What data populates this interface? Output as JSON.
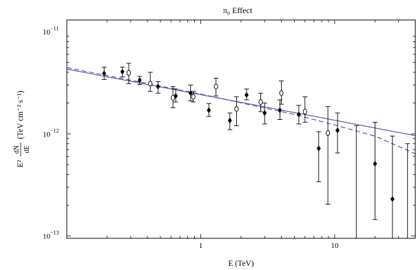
{
  "chart_data": {
    "type": "scatter",
    "title": "π₀ Effect",
    "xlabel": "E (TeV)",
    "ylabel_numerator": "dN",
    "ylabel_denominator": "dE",
    "ylabel_prefix": "E²",
    "ylabel_unit": "(TeV cm⁻² s⁻¹)",
    "x_scale": "log",
    "y_scale": "log",
    "xlim": [
      0.1,
      40
    ],
    "ylim": [
      9.5e-14,
      1.3e-11
    ],
    "x_ticks": [
      {
        "value": 1,
        "label": "1"
      },
      {
        "value": 10,
        "label": "10"
      }
    ],
    "y_ticks": [
      {
        "value": 1e-13,
        "base": "10",
        "exp": "−13"
      },
      {
        "value": 1e-12,
        "base": "10",
        "exp": "−12"
      },
      {
        "value": 1e-11,
        "base": "10",
        "exp": "−11"
      }
    ],
    "grid": false,
    "legend": "none",
    "series": [
      {
        "marker": "filled-diamond",
        "color": "#000000",
        "points": [
          {
            "x": 0.19,
            "y": 3.9e-12,
            "ylo": 3.4e-12,
            "yhi": 4.5e-12
          },
          {
            "x": 0.26,
            "y": 4.05e-12,
            "ylo": 3.6e-12,
            "yhi": 4.5e-12
          },
          {
            "x": 0.35,
            "y": 3.35e-12,
            "ylo": 3.05e-12,
            "yhi": 3.65e-12
          },
          {
            "x": 0.48,
            "y": 2.9e-12,
            "ylo": 2.5e-12,
            "yhi": 3.25e-12
          },
          {
            "x": 0.65,
            "y": 2.35e-12,
            "ylo": 2.05e-12,
            "yhi": 2.75e-12
          },
          {
            "x": 0.84,
            "y": 2.5e-12,
            "ylo": 2.1e-12,
            "yhi": 3e-12
          },
          {
            "x": 1.15,
            "y": 1.7e-12,
            "ylo": 1.48e-12,
            "yhi": 1.98e-12
          },
          {
            "x": 1.65,
            "y": 1.35e-12,
            "ylo": 1.1e-12,
            "yhi": 1.6e-12
          },
          {
            "x": 2.2,
            "y": 2.4e-12,
            "ylo": 2.15e-12,
            "yhi": 2.75e-12
          },
          {
            "x": 3.0,
            "y": 1.6e-12,
            "ylo": 1.25e-12,
            "yhi": 2e-12
          },
          {
            "x": 3.9,
            "y": 1.7e-12,
            "ylo": 1.38e-12,
            "yhi": 2.15e-12
          },
          {
            "x": 5.4,
            "y": 1.55e-12,
            "ylo": 1.25e-12,
            "yhi": 1.9e-12
          },
          {
            "x": 7.6,
            "y": 7.2e-13,
            "ylo": 3.4e-13,
            "yhi": 1.05e-12
          },
          {
            "x": 10.5,
            "y": 1.08e-12,
            "ylo": 6.5e-13,
            "yhi": 1.6e-12
          },
          {
            "x": 20,
            "y": 5.1e-13,
            "ylo": 1.45e-13,
            "yhi": 1.3e-12
          },
          {
            "x": 27,
            "y": 2.3e-13,
            "ylo": 9.5e-14,
            "yhi": 9.5e-13
          }
        ]
      },
      {
        "marker": "open-circle",
        "color": "#000000",
        "points": [
          {
            "x": 0.29,
            "y": 3.95e-12,
            "ylo": 3.1e-12,
            "yhi": 4.9e-12
          },
          {
            "x": 0.42,
            "y": 3.1e-12,
            "ylo": 2.6e-12,
            "yhi": 4e-12
          },
          {
            "x": 0.62,
            "y": 2.25e-12,
            "ylo": 1.8e-12,
            "yhi": 2.9e-12
          },
          {
            "x": 0.88,
            "y": 2.3e-12,
            "ylo": 2.05e-12,
            "yhi": 2.6e-12
          },
          {
            "x": 1.3,
            "y": 2.9e-12,
            "ylo": 2.35e-12,
            "yhi": 3.5e-12
          },
          {
            "x": 1.85,
            "y": 1.75e-12,
            "ylo": 1.2e-12,
            "yhi": 2.3e-12
          },
          {
            "x": 2.8,
            "y": 2.05e-12,
            "ylo": 1.65e-12,
            "yhi": 2.5e-12
          },
          {
            "x": 4.0,
            "y": 2.5e-12,
            "ylo": 1.95e-12,
            "yhi": 3.3e-12
          },
          {
            "x": 6.0,
            "y": 1.65e-12,
            "ylo": 1.3e-12,
            "yhi": 2.3e-12
          },
          {
            "x": 8.9,
            "y": 1.02e-12,
            "ylo": 2.05e-13,
            "yhi": 1.85e-12
          },
          {
            "x": 14.5,
            "y": null,
            "ylo": 9.5e-14,
            "yhi": 1.2e-12
          },
          {
            "x": 35,
            "y": null,
            "ylo": 9.5e-14,
            "yhi": 8e-13
          }
        ]
      }
    ],
    "fits": [
      {
        "style": "solid",
        "color": "#4b4ba8",
        "points": [
          [
            0.1,
            4.3e-12
          ],
          [
            40,
            9.6e-13
          ]
        ]
      },
      {
        "style": "dashed",
        "color": "#4b4ba8",
        "points": [
          [
            0.1,
            4.45e-12
          ],
          [
            1,
            2.45e-12
          ],
          [
            5,
            1.55e-12
          ],
          [
            10,
            1.22e-12
          ],
          [
            20,
            9.5e-13
          ],
          [
            40,
            6.4e-13
          ]
        ]
      }
    ]
  }
}
